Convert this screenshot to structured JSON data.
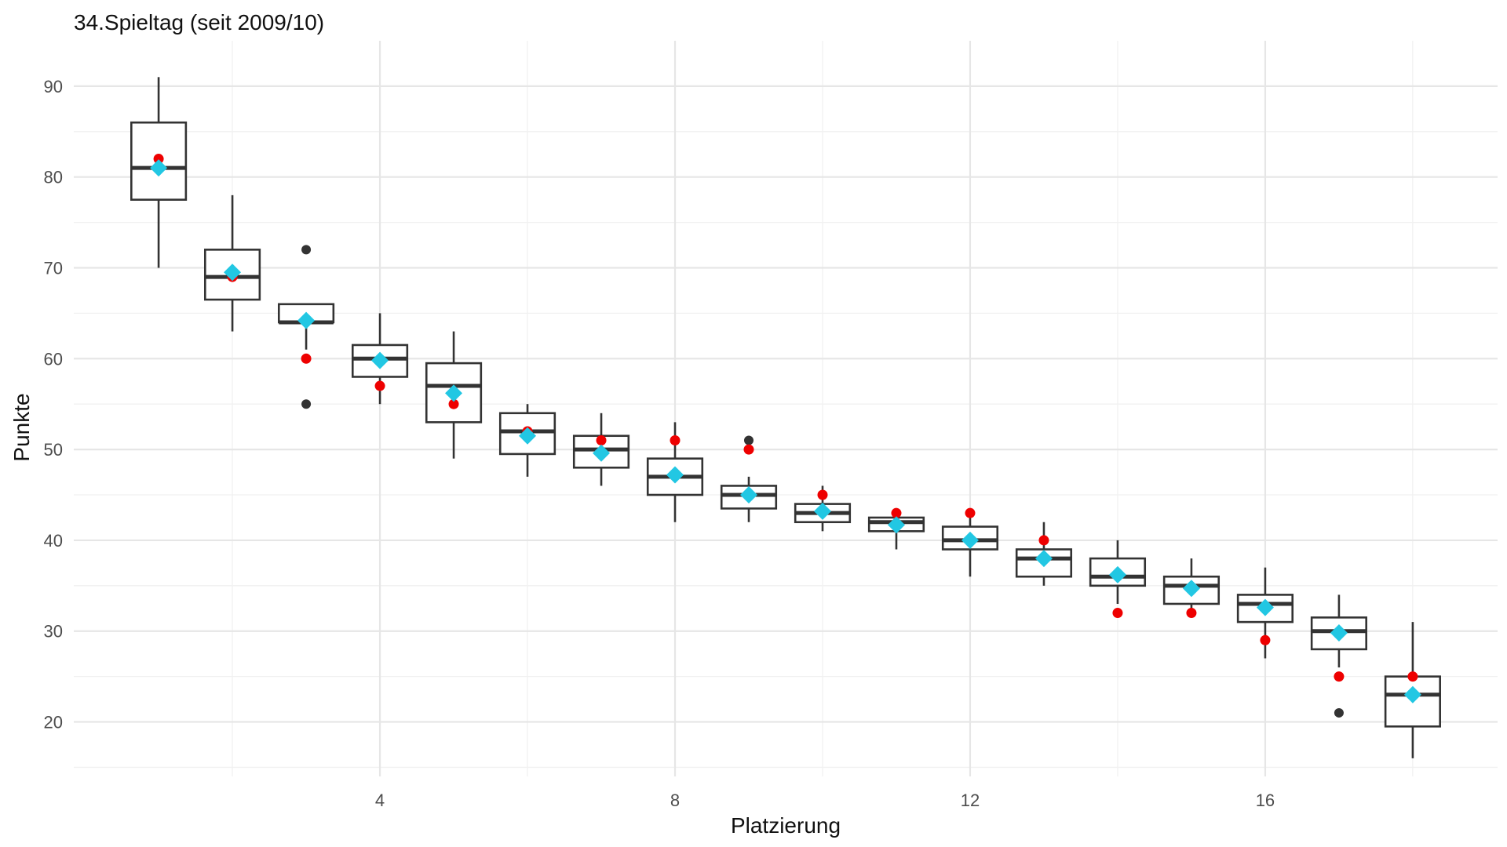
{
  "chart_data": {
    "type": "boxplot",
    "title": "34.Spieltag (seit 2009/10)",
    "xlabel": "Platzierung",
    "ylabel": "Punkte",
    "xlim": [
      -0.15,
      19.15
    ],
    "ylim": [
      14,
      95
    ],
    "x_ticks": [
      4,
      8,
      12,
      16
    ],
    "y_ticks": [
      20,
      30,
      40,
      50,
      60,
      70,
      80,
      90
    ],
    "x_minor_ticks": [
      2,
      6,
      10,
      14,
      18
    ],
    "y_minor_ticks": [
      15,
      25,
      35,
      45,
      55,
      65,
      75,
      85
    ],
    "grid": true,
    "colors": {
      "box": "#333333",
      "mean_marker": "#22c7e3",
      "current_point": "#ee0000",
      "outlier": "#333333",
      "grid": "#e6e6e6"
    },
    "boxes": [
      {
        "x": 1,
        "q1": 77.5,
        "median": 81,
        "q3": 86,
        "whisker_low": 70,
        "whisker_high": 91,
        "mean": 81,
        "current": 82,
        "outliers": []
      },
      {
        "x": 2,
        "q1": 66.5,
        "median": 69,
        "q3": 72,
        "whisker_low": 63,
        "whisker_high": 78,
        "mean": 69.5,
        "current": 69,
        "outliers": []
      },
      {
        "x": 3,
        "q1": 64,
        "median": 64,
        "q3": 66,
        "whisker_low": 61,
        "whisker_high": 66,
        "mean": 64.2,
        "current": 60,
        "outliers": [
          72,
          55
        ]
      },
      {
        "x": 4,
        "q1": 58,
        "median": 60,
        "q3": 61.5,
        "whisker_low": 55,
        "whisker_high": 65,
        "mean": 59.8,
        "current": 57,
        "outliers": []
      },
      {
        "x": 5,
        "q1": 53,
        "median": 57,
        "q3": 59.5,
        "whisker_low": 49,
        "whisker_high": 63,
        "mean": 56.2,
        "current": 55,
        "outliers": []
      },
      {
        "x": 6,
        "q1": 49.5,
        "median": 52,
        "q3": 54,
        "whisker_low": 47,
        "whisker_high": 55,
        "mean": 51.5,
        "current": 52,
        "outliers": []
      },
      {
        "x": 7,
        "q1": 48,
        "median": 50,
        "q3": 51.5,
        "whisker_low": 46,
        "whisker_high": 54,
        "mean": 49.6,
        "current": 51,
        "outliers": []
      },
      {
        "x": 8,
        "q1": 45,
        "median": 47,
        "q3": 49,
        "whisker_low": 42,
        "whisker_high": 53,
        "mean": 47.2,
        "current": 51,
        "outliers": []
      },
      {
        "x": 9,
        "q1": 43.5,
        "median": 45,
        "q3": 46,
        "whisker_low": 42,
        "whisker_high": 47,
        "mean": 45,
        "current": 50,
        "outliers": [
          51
        ]
      },
      {
        "x": 10,
        "q1": 42,
        "median": 43,
        "q3": 44,
        "whisker_low": 41,
        "whisker_high": 46,
        "mean": 43.2,
        "current": 45,
        "outliers": []
      },
      {
        "x": 11,
        "q1": 41,
        "median": 42,
        "q3": 42.5,
        "whisker_low": 39,
        "whisker_high": 43,
        "mean": 41.7,
        "current": 43,
        "outliers": []
      },
      {
        "x": 12,
        "q1": 39,
        "median": 40,
        "q3": 41.5,
        "whisker_low": 36,
        "whisker_high": 43,
        "mean": 40,
        "current": 43,
        "outliers": []
      },
      {
        "x": 13,
        "q1": 36,
        "median": 38,
        "q3": 39,
        "whisker_low": 35,
        "whisker_high": 42,
        "mean": 38,
        "current": 40,
        "outliers": []
      },
      {
        "x": 14,
        "q1": 35,
        "median": 36,
        "q3": 38,
        "whisker_low": 33,
        "whisker_high": 40,
        "mean": 36.2,
        "current": 32,
        "outliers": []
      },
      {
        "x": 15,
        "q1": 33,
        "median": 35,
        "q3": 36,
        "whisker_low": 32,
        "whisker_high": 38,
        "mean": 34.7,
        "current": 32,
        "outliers": []
      },
      {
        "x": 16,
        "q1": 31,
        "median": 33,
        "q3": 34,
        "whisker_low": 27,
        "whisker_high": 37,
        "mean": 32.6,
        "current": 29,
        "outliers": []
      },
      {
        "x": 17,
        "q1": 28,
        "median": 30,
        "q3": 31.5,
        "whisker_low": 26,
        "whisker_high": 34,
        "mean": 29.8,
        "current": 25,
        "outliers": [
          21
        ]
      },
      {
        "x": 18,
        "q1": 19.5,
        "median": 23,
        "q3": 25,
        "whisker_low": 16,
        "whisker_high": 31,
        "mean": 23,
        "current": 25,
        "outliers": []
      }
    ]
  }
}
